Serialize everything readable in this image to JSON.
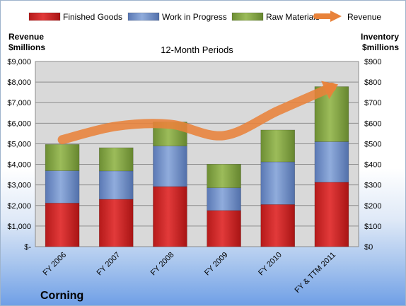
{
  "chart_data": {
    "type": "bar",
    "stacked": true,
    "title": "12-Month Periods",
    "company": "Corning",
    "categories": [
      "FY 2006",
      "FY 2007",
      "FY 2008",
      "FY 2009",
      "FY 2010",
      "FY & TTM 2011"
    ],
    "series": [
      {
        "name": "Finished Goods",
        "axis": "right",
        "color": "#cc2222",
        "values": [
          212,
          230,
          292,
          176,
          205,
          313
        ]
      },
      {
        "name": "Work in Progress",
        "axis": "right",
        "color": "#6f8fc8",
        "values": [
          157,
          138,
          197,
          110,
          207,
          197
        ]
      },
      {
        "name": "Raw Materials",
        "axis": "right",
        "color": "#86a848",
        "values": [
          128,
          113,
          117,
          115,
          155,
          268
        ]
      }
    ],
    "line": {
      "name": "Revenue",
      "axis": "left",
      "color": "#e8823a",
      "values": [
        5200,
        5850,
        5950,
        5400,
        6600,
        7750
      ]
    },
    "left_axis": {
      "label": "Revenue $millions",
      "label_lines": [
        "Revenue",
        "$millions"
      ],
      "min": 0,
      "max": 9000,
      "step": 1000,
      "tick_labels": [
        "$-",
        "$1,000",
        "$2,000",
        "$3,000",
        "$4,000",
        "$5,000",
        "$6,000",
        "$7,000",
        "$8,000",
        "$9,000"
      ]
    },
    "right_axis": {
      "label": "Inventory $millions",
      "label_lines": [
        "Inventory",
        "$millions"
      ],
      "min": 0,
      "max": 900,
      "step": 100,
      "tick_labels": [
        "$0",
        "$100",
        "$200",
        "$300",
        "$400",
        "$500",
        "$600",
        "$700",
        "$800",
        "$900"
      ]
    },
    "legend": {
      "placement": "top",
      "entries": [
        "Finished Goods",
        "Work in Progress",
        "Raw Materials",
        "Revenue"
      ]
    },
    "grid": true
  }
}
